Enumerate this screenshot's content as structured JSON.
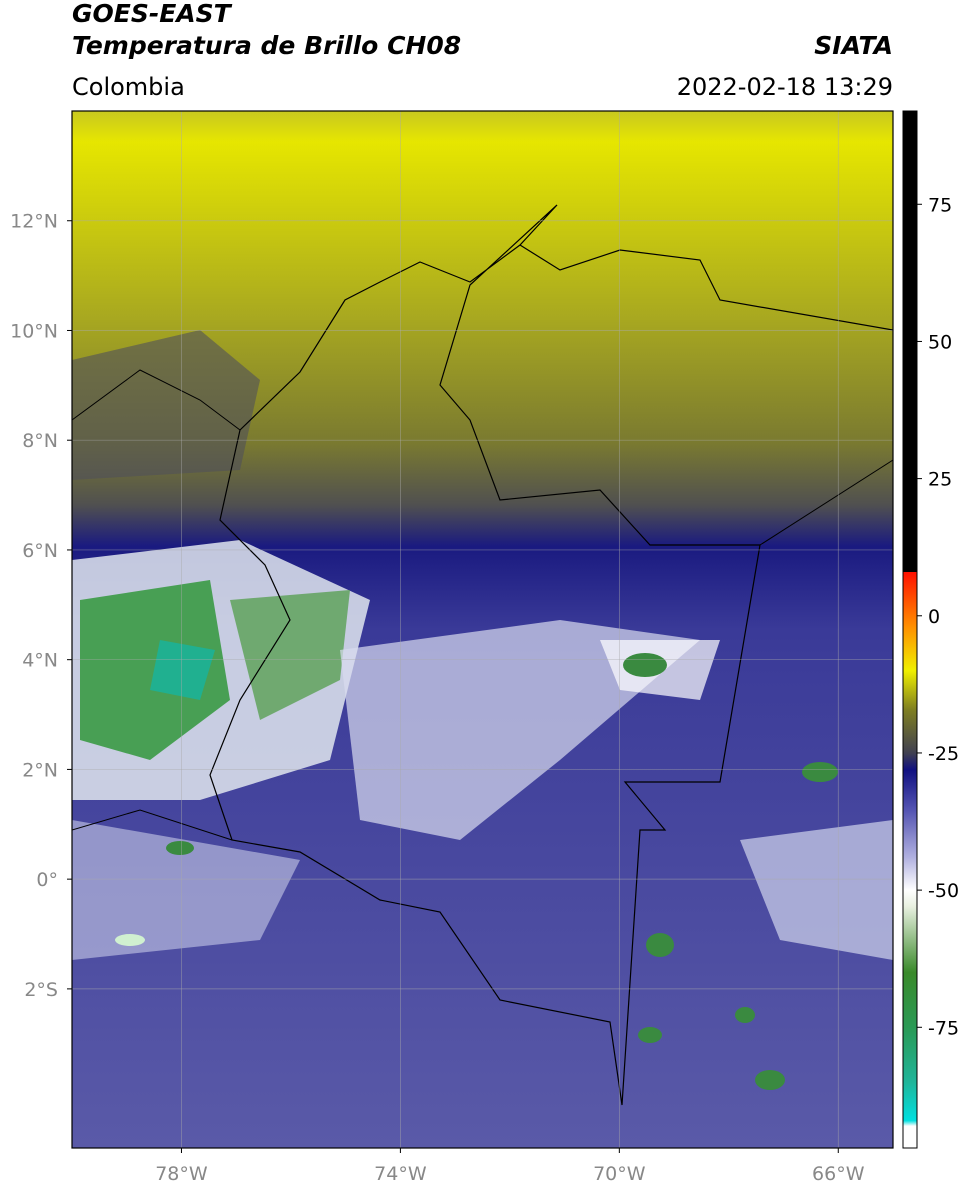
{
  "header": {
    "title": "GOES-EAST",
    "subtitle": "Temperatura de Brillo CH08",
    "source": "SIATA",
    "region": "Colombia",
    "datetime": "2022-02-18 13:29"
  },
  "map": {
    "xlim": [
      -80,
      -65
    ],
    "ylim": [
      -4.9,
      14
    ],
    "xticks": [
      {
        "value": -78,
        "label": "78°W"
      },
      {
        "value": -74,
        "label": "74°W"
      },
      {
        "value": -70,
        "label": "70°W"
      },
      {
        "value": -66,
        "label": "66°W"
      }
    ],
    "yticks": [
      {
        "value": 12,
        "label": "12°N"
      },
      {
        "value": 10,
        "label": "10°N"
      },
      {
        "value": 8,
        "label": "8°N"
      },
      {
        "value": 6,
        "label": "6°N"
      },
      {
        "value": 4,
        "label": "4°N"
      },
      {
        "value": 2,
        "label": "2°N"
      },
      {
        "value": 0,
        "label": "0°"
      },
      {
        "value": -2,
        "label": "2°S"
      }
    ],
    "grid": true
  },
  "colorbar": {
    "lim": [
      -97,
      92
    ],
    "ticks": [
      -75,
      -50,
      -25,
      0,
      25,
      50,
      75
    ],
    "stops": [
      {
        "value": -97,
        "color": "#ffffff"
      },
      {
        "value": -93,
        "color": "#ffffff"
      },
      {
        "value": -92,
        "color": "#00e0e0"
      },
      {
        "value": -85,
        "color": "#1fb59a"
      },
      {
        "value": -75,
        "color": "#2a9a55"
      },
      {
        "value": -65,
        "color": "#3a8a2a"
      },
      {
        "value": -53,
        "color": "#e8f0e0"
      },
      {
        "value": -50,
        "color": "#ffffff"
      },
      {
        "value": -44,
        "color": "#b0b0e0"
      },
      {
        "value": -35,
        "color": "#5050b0"
      },
      {
        "value": -28,
        "color": "#101080"
      },
      {
        "value": -25,
        "color": "#404050"
      },
      {
        "value": -17,
        "color": "#808020"
      },
      {
        "value": -10,
        "color": "#f0f000"
      },
      {
        "value": -2,
        "color": "#ff9000"
      },
      {
        "value": 8,
        "color": "#ff1000"
      },
      {
        "value": 8,
        "color": "#000000"
      },
      {
        "value": 92,
        "color": "#000000"
      }
    ]
  }
}
